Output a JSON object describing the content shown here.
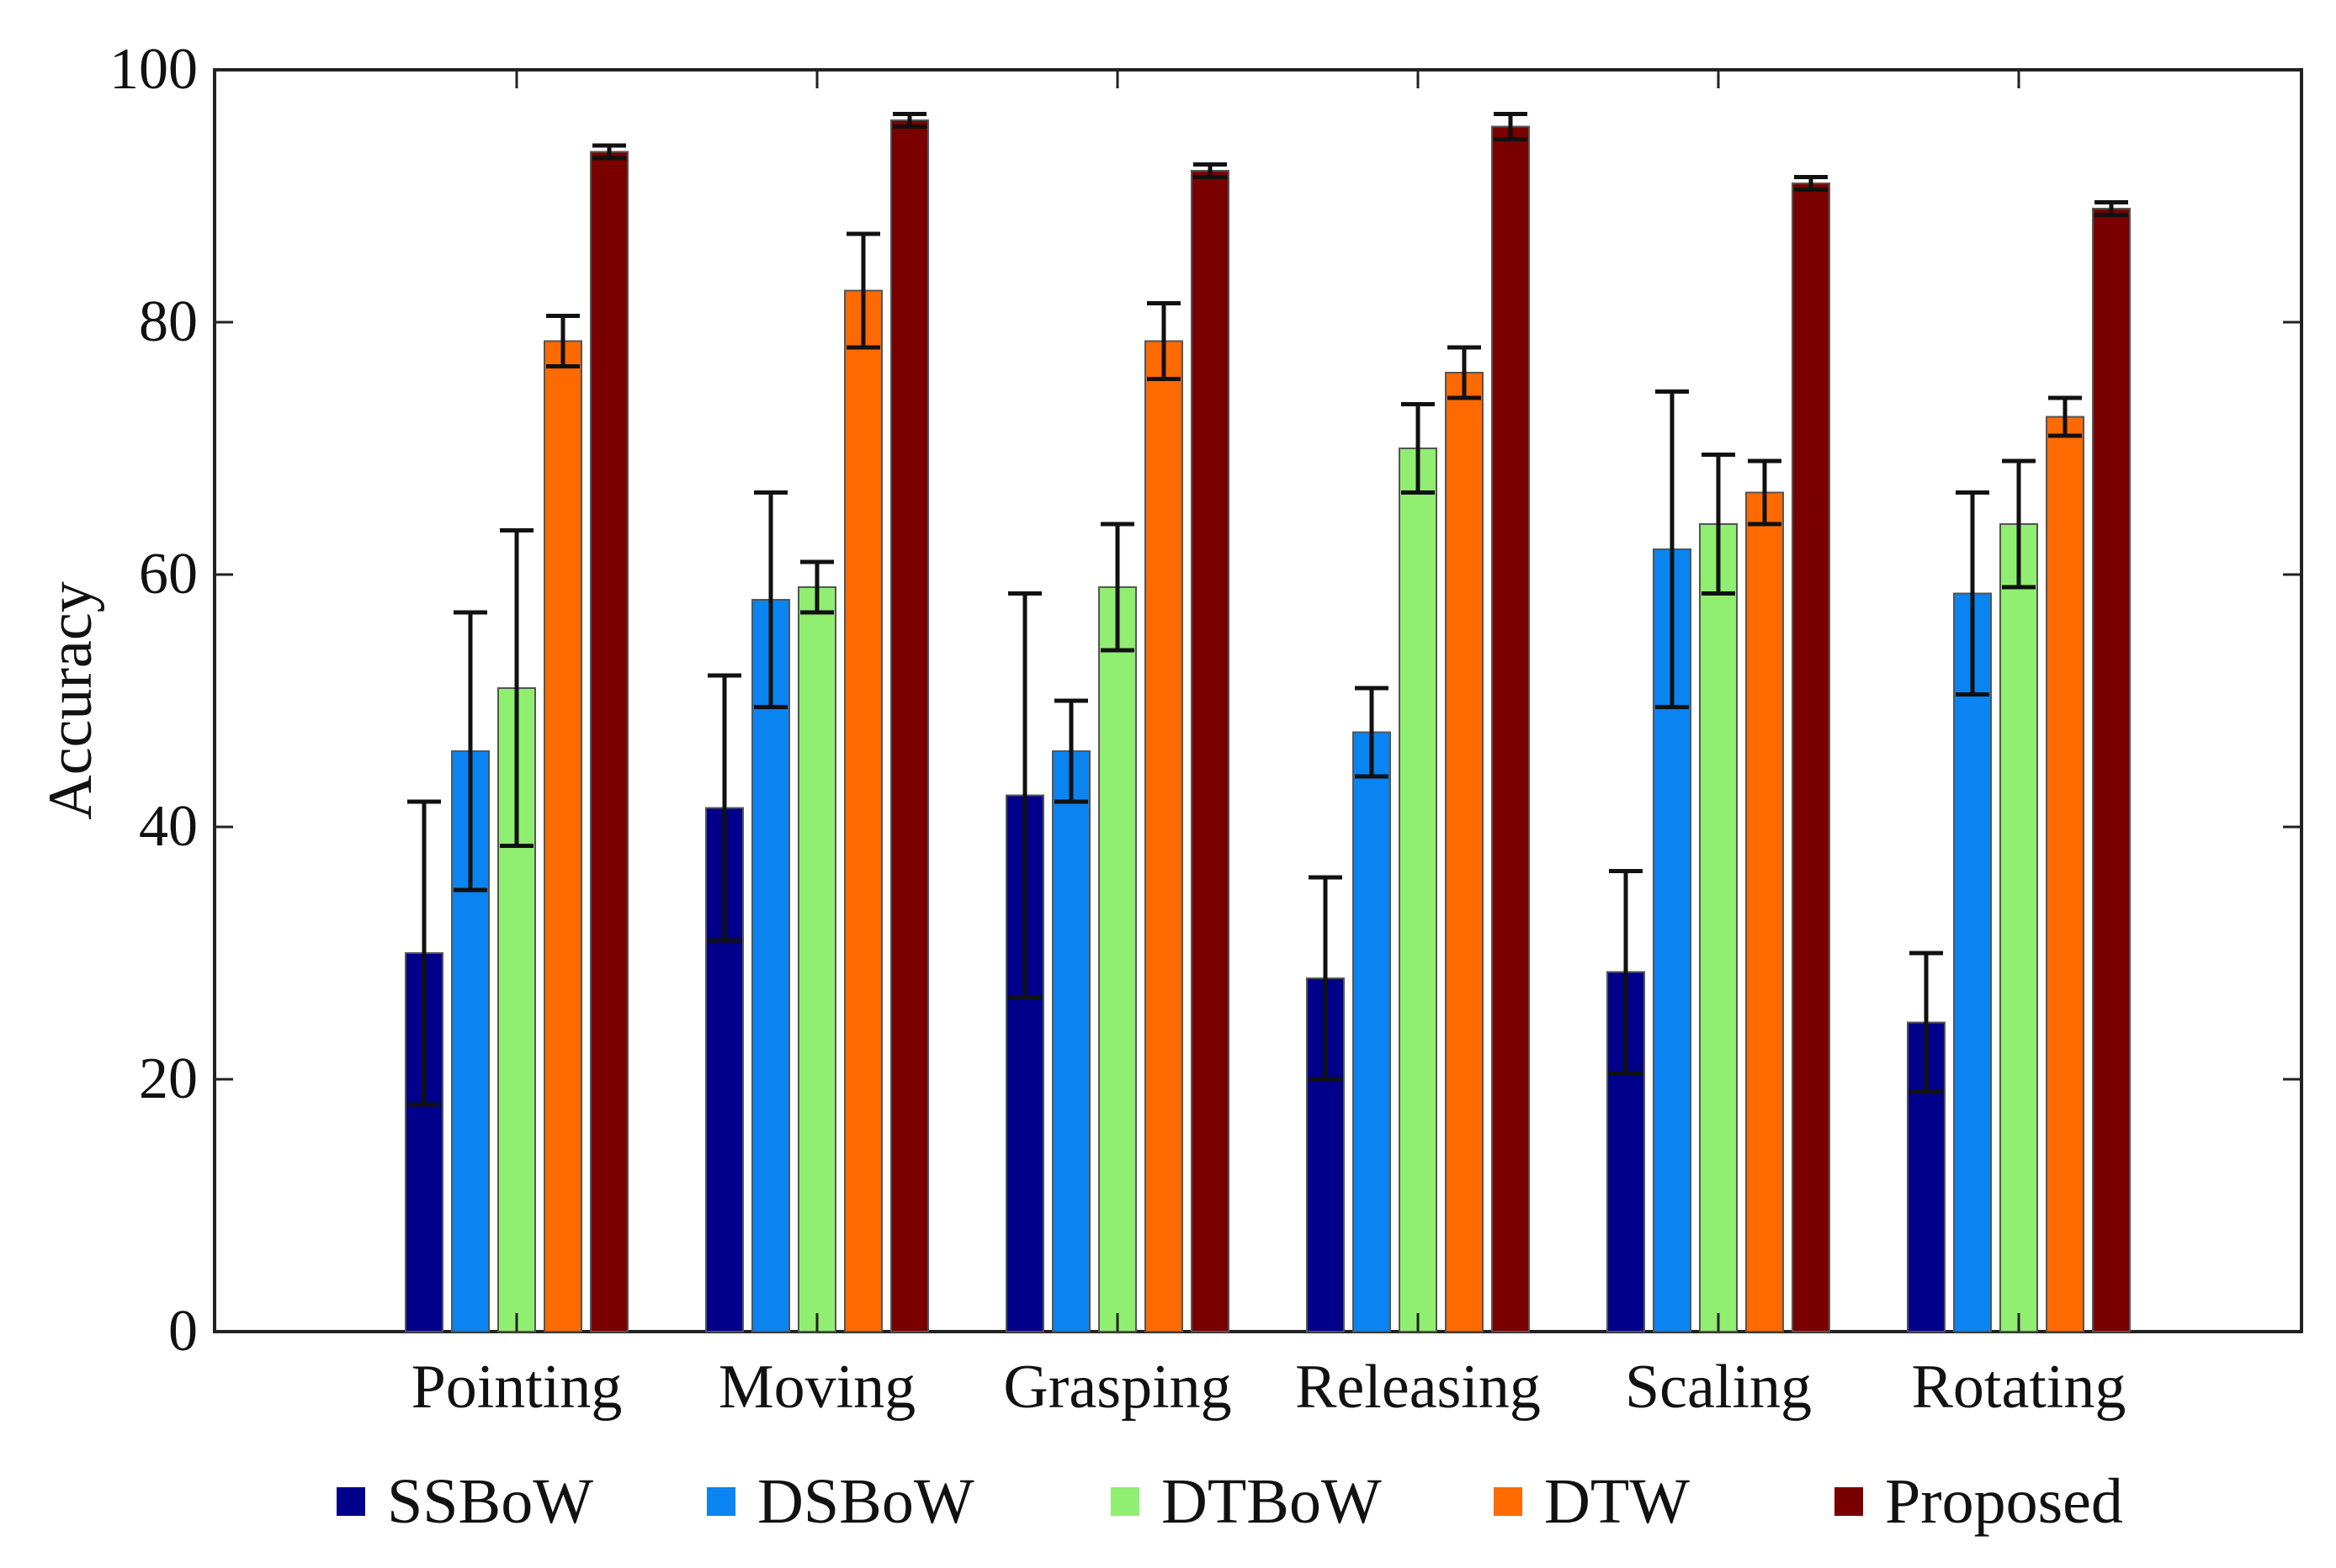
{
  "chart_data": {
    "type": "bar",
    "categories": [
      "Pointing",
      "Moving",
      "Grasping",
      "Releasing",
      "Scaling",
      "Rotating"
    ],
    "series": [
      {
        "name": "SSBoW",
        "color": "#00008b",
        "values": [
          30,
          41.5,
          42.5,
          28,
          28.5,
          24.5
        ],
        "errors": [
          12,
          10.5,
          16,
          8,
          8,
          5.5
        ]
      },
      {
        "name": "DSBoW",
        "color": "#0a84f0",
        "values": [
          46,
          58,
          46,
          47.5,
          62,
          58.5
        ],
        "errors": [
          11,
          8.5,
          4,
          3.5,
          12.5,
          8
        ]
      },
      {
        "name": "DTBoW",
        "color": "#90ee70",
        "values": [
          51,
          59,
          59,
          70,
          64,
          64
        ],
        "errors": [
          12.5,
          2,
          5,
          3.5,
          5.5,
          5
        ]
      },
      {
        "name": "DTW",
        "color": "#ff6a00",
        "values": [
          78.5,
          82.5,
          78.5,
          76,
          66.5,
          72.5
        ],
        "errors": [
          2,
          4.5,
          3,
          2,
          2.5,
          1.5
        ]
      },
      {
        "name": "Proposed",
        "color": "#7a0000",
        "values": [
          93.5,
          96,
          92,
          95.5,
          91,
          89
        ],
        "errors": [
          0.5,
          0.5,
          0.5,
          1,
          0.5,
          0.5
        ]
      }
    ],
    "ylabel": "Accuracy",
    "xlabel": "",
    "ylim": [
      0,
      100
    ],
    "yticks": [
      "0",
      "20",
      "40",
      "60",
      "80",
      "100"
    ],
    "grid": false,
    "legend_position": "bottom"
  }
}
